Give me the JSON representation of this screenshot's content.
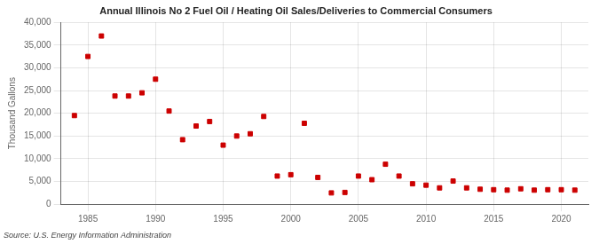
{
  "chart_data": {
    "type": "scatter",
    "title": "Annual Illinois No 2 Fuel Oil / Heating Oil Sales/Deliveries to Commercial Consumers",
    "ylabel": "Thousand Gallons",
    "source": "Source: U.S. Energy Information Administration",
    "x": [
      1984,
      1985,
      1986,
      1987,
      1988,
      1989,
      1990,
      1991,
      1992,
      1993,
      1994,
      1995,
      1996,
      1997,
      1998,
      1999,
      2000,
      2001,
      2002,
      2003,
      2004,
      2005,
      2006,
      2007,
      2008,
      2009,
      2010,
      2011,
      2012,
      2013,
      2014,
      2015,
      2016,
      2017,
      2018,
      2019,
      2020,
      2021
    ],
    "values": [
      19500,
      32500,
      37000,
      23800,
      23800,
      24500,
      27500,
      20500,
      14200,
      17200,
      18200,
      13000,
      15000,
      15500,
      19300,
      6200,
      6500,
      17800,
      5900,
      2500,
      2600,
      6200,
      5400,
      8800,
      6200,
      4500,
      4200,
      3600,
      5100,
      3600,
      3300,
      3200,
      3100,
      3400,
      3100,
      3200,
      3200,
      3100
    ],
    "color": "#cc0000",
    "marker": "square",
    "xlim": [
      1983,
      2022
    ],
    "xticks": [
      1985,
      1990,
      1995,
      2000,
      2005,
      2010,
      2015,
      2020
    ],
    "ylim": [
      0,
      40000
    ],
    "yticks": [
      0,
      {
        "value": 5000,
        "label": "5,000"
      },
      {
        "value": 10000,
        "label": "10,000"
      },
      {
        "value": 15000,
        "label": "15,000"
      },
      {
        "value": 20000,
        "label": "20,000"
      },
      {
        "value": 25000,
        "label": "25,000"
      },
      {
        "value": 30000,
        "label": "30,000"
      },
      {
        "value": 35000,
        "label": "35,000"
      },
      {
        "value": 40000,
        "label": "40,000"
      }
    ],
    "grid": true
  }
}
